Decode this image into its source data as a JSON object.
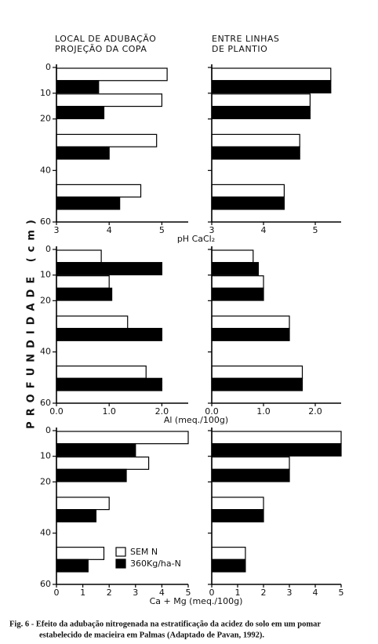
{
  "column_titles": [
    [
      "LOCAL DE ADUBAÇÃO",
      "PROJEÇÃO DA COPA"
    ],
    [
      "ENTRE LINHAS",
      "DE PLANTIO"
    ]
  ],
  "y_label": "PROFUNDIDADE (cm)",
  "caption": [
    "Fig. 6 - Efeito da adubação nitrogenada na estratificação da acidez do solo em um pomar",
    "estabelecido de macieira em Palmas (Adaptado de Pavan, 1992)."
  ],
  "chart_data": [
    {
      "type": "bar",
      "orientation": "horizontal",
      "categories": [
        null,
        null,
        null,
        null
      ],
      "xlabel": "pH CaCl₂",
      "series": [
        {
          "color": "#ffffff",
          "values": [
            5.1,
            5.0,
            4.9,
            4.6
          ]
        },
        {
          "color": "#000000",
          "values": [
            3.8,
            3.9,
            4.0,
            4.2
          ]
        }
      ],
      "xlim": [
        3,
        5.5
      ],
      "xticks": [
        3,
        4,
        5
      ],
      "ylim": [
        0,
        60
      ],
      "yticks": [
        0,
        10,
        20,
        40,
        60
      ]
    },
    {
      "type": "bar",
      "orientation": "horizontal",
      "categories": [
        null,
        null,
        null,
        null
      ],
      "series": [
        {
          "color": "#ffffff",
          "values": [
            5.3,
            4.9,
            4.7,
            4.4
          ]
        },
        {
          "color": "#000000",
          "values": [
            5.3,
            4.9,
            4.7,
            4.4
          ]
        }
      ],
      "xlim": [
        3,
        5.5
      ],
      "xticks": [
        3,
        4,
        5
      ],
      "ylim": [
        0,
        60
      ]
    },
    {
      "type": "bar",
      "orientation": "horizontal",
      "categories": [
        null,
        null,
        null,
        null
      ],
      "xlabel": "Al (meq./100g)",
      "series": [
        {
          "color": "#ffffff",
          "values": [
            0.85,
            1.0,
            1.35,
            1.7
          ]
        },
        {
          "color": "#000000",
          "values": [
            2.0,
            1.05,
            2.0,
            2.0
          ]
        }
      ],
      "xlim": [
        0,
        2.5
      ],
      "xticks": [
        {
          "value": 0,
          "label": "0.0"
        },
        {
          "value": 1,
          "label": "1.0"
        },
        {
          "value": 2,
          "label": "2.0"
        }
      ],
      "ylim": [
        0,
        60
      ],
      "yticks": [
        0,
        10,
        20,
        40,
        60
      ]
    },
    {
      "type": "bar",
      "orientation": "horizontal",
      "categories": [
        null,
        null,
        null,
        null
      ],
      "series": [
        {
          "color": "#ffffff",
          "values": [
            0.8,
            1.0,
            1.5,
            1.75
          ]
        },
        {
          "color": "#000000",
          "values": [
            0.9,
            1.0,
            1.5,
            1.75
          ]
        }
      ],
      "xlim": [
        0,
        2.5
      ],
      "xticks": [
        {
          "value": 0,
          "label": "0.0"
        },
        {
          "value": 1,
          "label": "1.0"
        },
        {
          "value": 2,
          "label": "2.0"
        }
      ],
      "ylim": [
        0,
        60
      ]
    },
    {
      "type": "bar",
      "orientation": "horizontal",
      "categories": [
        null,
        null,
        null,
        null
      ],
      "xlabel": "Ca + Mg (meq./100g)",
      "series": [
        {
          "name": "SEM N",
          "color": "#ffffff",
          "values": [
            5.0,
            3.5,
            2.0,
            1.8
          ]
        },
        {
          "name": "360Kg/ha-N",
          "color": "#000000",
          "values": [
            3.0,
            2.65,
            1.5,
            1.2
          ]
        }
      ],
      "xlim": [
        0,
        5
      ],
      "xticks": [
        0,
        1,
        2,
        3,
        4,
        5
      ],
      "ylim": [
        0,
        60
      ],
      "yticks": [
        0,
        10,
        20,
        40,
        60
      ]
    },
    {
      "type": "bar",
      "orientation": "horizontal",
      "categories": [
        null,
        null,
        null,
        null
      ],
      "series": [
        {
          "color": "#ffffff",
          "values": [
            5.0,
            3.0,
            2.0,
            1.3
          ]
        },
        {
          "color": "#000000",
          "values": [
            5.0,
            3.0,
            2.0,
            1.3
          ]
        }
      ],
      "xlim": [
        0,
        5
      ],
      "xticks": [
        0,
        1,
        2,
        3,
        4,
        5
      ],
      "ylim": [
        0,
        60
      ]
    }
  ]
}
